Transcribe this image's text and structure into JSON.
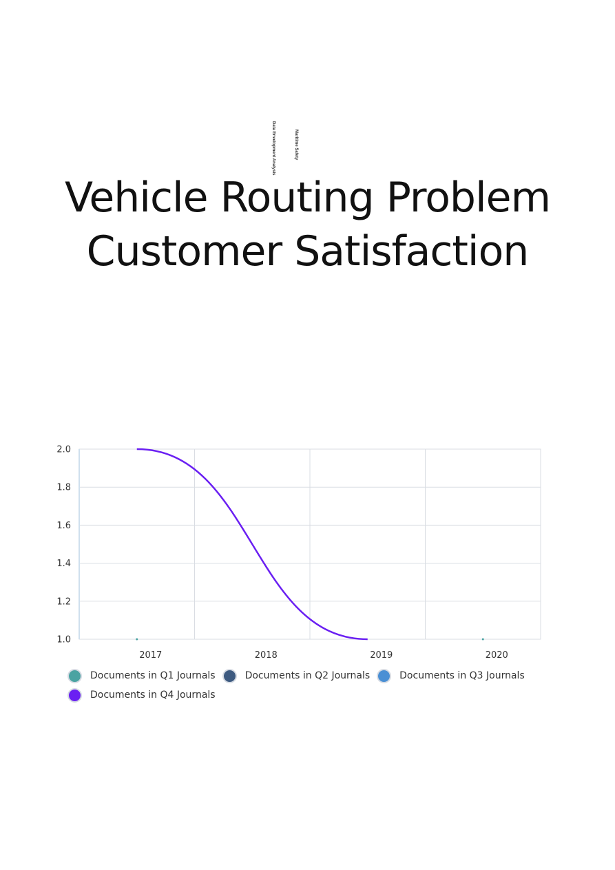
{
  "header": {
    "vertical_labels": [
      "Data Envelopment Analysis",
      "Maritime Safety"
    ],
    "title_line1": "Vehicle Routing Problem",
    "title_line2": "Customer Satisfaction"
  },
  "chart_data": {
    "type": "line",
    "categories": [
      "2017",
      "2018",
      "2019",
      "2020"
    ],
    "ylim": [
      1.0,
      2.0
    ],
    "yticks": [
      "1.0",
      "1.2",
      "1.4",
      "1.6",
      "1.8",
      "2.0"
    ],
    "series": [
      {
        "name": "Documents in Q1 Journals",
        "color": "#4aa3a2",
        "values": [
          1,
          null,
          null,
          1
        ]
      },
      {
        "name": "Documents in Q2 Journals",
        "color": "#3d5a80",
        "values": [
          null,
          null,
          null,
          null
        ]
      },
      {
        "name": "Documents in Q3 Journals",
        "color": "#4a8fd4",
        "values": [
          null,
          null,
          null,
          null
        ]
      },
      {
        "name": "Documents in Q4 Journals",
        "color": "#6a1ff2",
        "values": [
          2,
          null,
          1,
          null
        ]
      }
    ],
    "title": "",
    "xlabel": "",
    "ylabel": "",
    "grid": true,
    "legend": "bottom-left"
  }
}
